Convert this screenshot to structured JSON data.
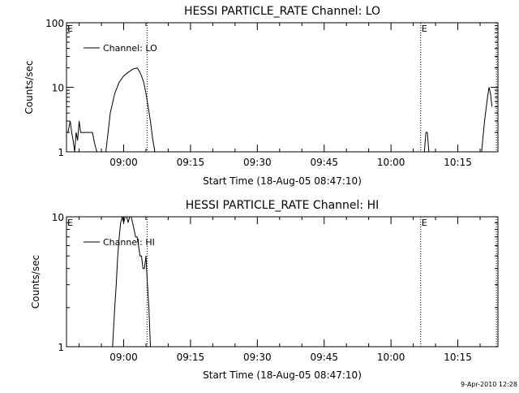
{
  "footer_timestamp": "9-Apr-2010 12:28",
  "chart_data": [
    {
      "type": "line",
      "title": "HESSI PARTICLE_RATE Channel: LO",
      "xlabel": "Start Time (18-Aug-05 08:47:10)",
      "ylabel": "Counts/sec",
      "y_scale": "log",
      "ylim": [
        1,
        100
      ],
      "y_ticks": [
        1,
        10,
        100
      ],
      "y_tick_labels": [
        "1",
        "10",
        "100"
      ],
      "xlim": [
        "08:47:10",
        "10:24:00"
      ],
      "x_ticks": [
        "09:00",
        "09:15",
        "09:30",
        "09:45",
        "10:00",
        "10:15"
      ],
      "legend": {
        "placement": "top-left",
        "entries": [
          "Channel: LO"
        ]
      },
      "event_markers": [
        {
          "time": "09:05:15",
          "label": "E",
          "label_position": "left-edge"
        },
        {
          "time": "10:06:40",
          "label": "E",
          "label_position": "line"
        },
        {
          "time": "10:23:40",
          "label": "",
          "label_position": "none"
        }
      ],
      "series": [
        {
          "name": "Channel: LO",
          "segments": [
            {
              "x": [
                "08:47:10",
                "08:47:30",
                "08:48:00",
                "08:48:20",
                "08:48:40",
                "08:49:00",
                "08:49:20",
                "08:49:40",
                "08:50:00",
                "08:50:20",
                "08:50:40",
                "08:51:00",
                "08:51:30",
                "08:52:00",
                "08:52:30",
                "08:53:00",
                "08:53:20",
                "08:53:40",
                "08:54:00",
                "08:54:20"
              ],
              "y": [
                2,
                2,
                3,
                2,
                1.5,
                1,
                2,
                1.5,
                3,
                2,
                2,
                2,
                2,
                2,
                2,
                2,
                1.5,
                1.2,
                1,
                1
              ]
            },
            {
              "x": [
                "08:56:00",
                "08:56:30",
                "08:57:00",
                "08:58:00",
                "08:59:00",
                "09:00:00",
                "09:01:00",
                "09:02:00",
                "09:03:00",
                "09:03:30",
                "09:04:00",
                "09:04:30",
                "09:05:00",
                "09:05:30",
                "09:06:00",
                "09:06:30",
                "09:07:00"
              ],
              "y": [
                1,
                2,
                4,
                8,
                12,
                15,
                17,
                19,
                20,
                18,
                15,
                12,
                8,
                5,
                3,
                1.6,
                1
              ]
            },
            {
              "x": [
                "10:07:30",
                "10:07:50",
                "10:08:10",
                "10:08:30"
              ],
              "y": [
                1,
                2,
                2,
                1
              ]
            },
            {
              "x": [
                "10:20:20",
                "10:21:00",
                "10:21:40",
                "10:22:00",
                "10:22:20",
                "10:22:40"
              ],
              "y": [
                1,
                3,
                7,
                10,
                8,
                5
              ]
            }
          ]
        }
      ]
    },
    {
      "type": "line",
      "title": "HESSI PARTICLE_RATE Channel: HI",
      "xlabel": "Start Time (18-Aug-05 08:47:10)",
      "ylabel": "Counts/sec",
      "y_scale": "log",
      "ylim": [
        1,
        10
      ],
      "y_ticks": [
        1,
        10
      ],
      "y_tick_labels": [
        "1",
        "10"
      ],
      "xlim": [
        "08:47:10",
        "10:24:00"
      ],
      "x_ticks": [
        "09:00",
        "09:15",
        "09:30",
        "09:45",
        "10:00",
        "10:15"
      ],
      "legend": {
        "placement": "top-left",
        "entries": [
          "Channel: HI"
        ]
      },
      "event_markers": [
        {
          "time": "09:05:15",
          "label": "E",
          "label_position": "left-edge"
        },
        {
          "time": "10:06:40",
          "label": "E",
          "label_position": "line"
        },
        {
          "time": "10:23:40",
          "label": "",
          "label_position": "none"
        }
      ],
      "series": [
        {
          "name": "Channel: HI",
          "segments": [
            {
              "x": [
                "08:57:30",
                "08:58:00",
                "08:58:20",
                "08:58:40",
                "08:59:00",
                "08:59:20",
                "08:59:40",
                "09:00:00",
                "09:00:20",
                "09:00:40",
                "09:01:00",
                "09:01:20",
                "09:01:40",
                "09:02:00",
                "09:02:20",
                "09:02:40",
                "09:03:00",
                "09:03:20",
                "09:03:40",
                "09:04:00",
                "09:04:20",
                "09:04:40",
                "09:05:00",
                "09:05:20",
                "09:05:40",
                "09:06:00"
              ],
              "y": [
                1,
                2,
                3,
                5,
                7,
                9,
                10,
                9,
                10,
                10,
                9,
                10,
                10,
                9,
                8,
                7,
                7,
                6,
                5,
                5,
                4,
                4,
                5,
                3,
                2,
                1
              ]
            }
          ]
        }
      ]
    }
  ]
}
